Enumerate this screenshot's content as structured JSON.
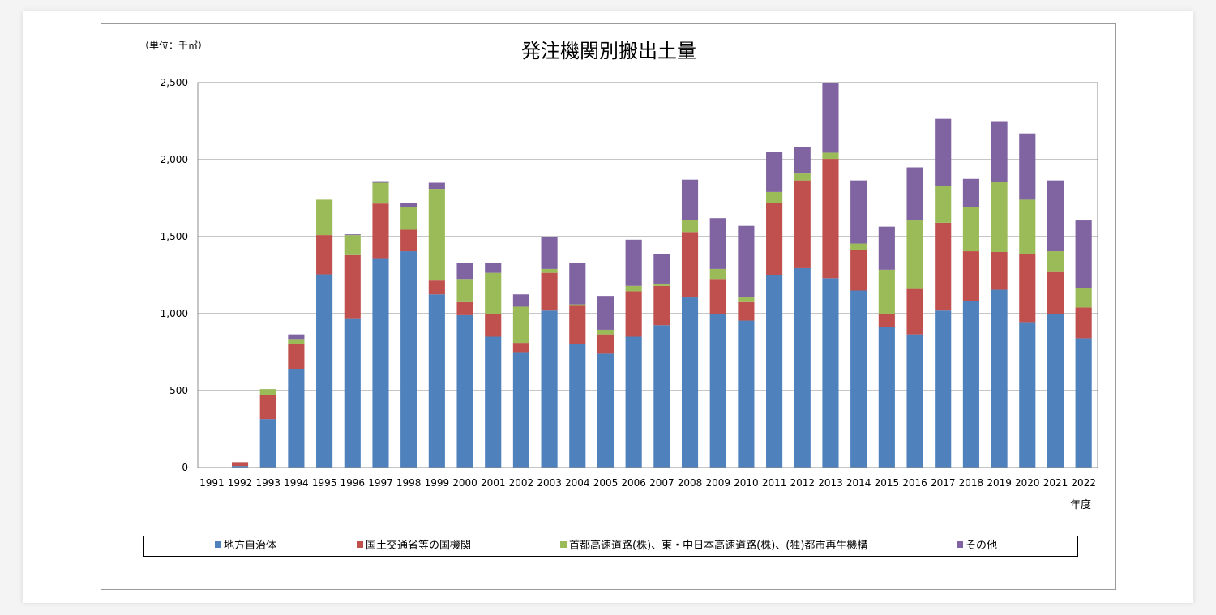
{
  "chart_data": {
    "type": "bar",
    "stacked": true,
    "title": "発注機関別搬出土量",
    "unit_label": "（単位：千㎥）",
    "xlabel": "年度",
    "ylim": [
      0,
      2500
    ],
    "yticks": [
      "0",
      "500",
      "1,000",
      "1,500",
      "2,000",
      "2,500"
    ],
    "grid": true,
    "legend_position": "bottom",
    "categories": [
      "1991",
      "1992",
      "1993",
      "1994",
      "1995",
      "1996",
      "1997",
      "1998",
      "1999",
      "2000",
      "2001",
      "2002",
      "2003",
      "2004",
      "2005",
      "2006",
      "2007",
      "2008",
      "2009",
      "2010",
      "2011",
      "2012",
      "2013",
      "2014",
      "2015",
      "2016",
      "2017",
      "2018",
      "2019",
      "2020",
      "2021",
      "2022"
    ],
    "series": [
      {
        "name": "地方自治体",
        "color": "#4F81BD",
        "values": [
          0,
          10,
          315,
          640,
          1255,
          965,
          1355,
          1405,
          1125,
          990,
          850,
          745,
          1020,
          800,
          740,
          850,
          925,
          1105,
          1000,
          955,
          1250,
          1295,
          1230,
          1150,
          915,
          865,
          1020,
          1080,
          1155,
          940,
          1000,
          840
        ]
      },
      {
        "name": "国土交通省等の国機関",
        "color": "#C0504D",
        "values": [
          0,
          25,
          155,
          160,
          255,
          415,
          360,
          140,
          90,
          85,
          145,
          65,
          245,
          250,
          125,
          295,
          255,
          425,
          225,
          120,
          470,
          570,
          775,
          265,
          85,
          295,
          570,
          325,
          245,
          445,
          270,
          200
        ]
      },
      {
        "name": "首都高速道路(株)、東・中日本高速道路(株)、(独)都市再生機構",
        "color": "#9BBB59",
        "values": [
          0,
          0,
          40,
          35,
          230,
          130,
          135,
          145,
          595,
          150,
          270,
          235,
          25,
          10,
          30,
          35,
          15,
          80,
          65,
          30,
          70,
          45,
          40,
          40,
          285,
          445,
          240,
          285,
          455,
          355,
          135,
          125
        ]
      },
      {
        "name": "その他",
        "color": "#8064A2",
        "values": [
          0,
          0,
          0,
          30,
          0,
          5,
          10,
          30,
          40,
          105,
          65,
          80,
          210,
          270,
          220,
          300,
          190,
          260,
          330,
          465,
          260,
          170,
          450,
          410,
          280,
          345,
          435,
          185,
          395,
          430,
          460,
          440
        ]
      }
    ]
  }
}
